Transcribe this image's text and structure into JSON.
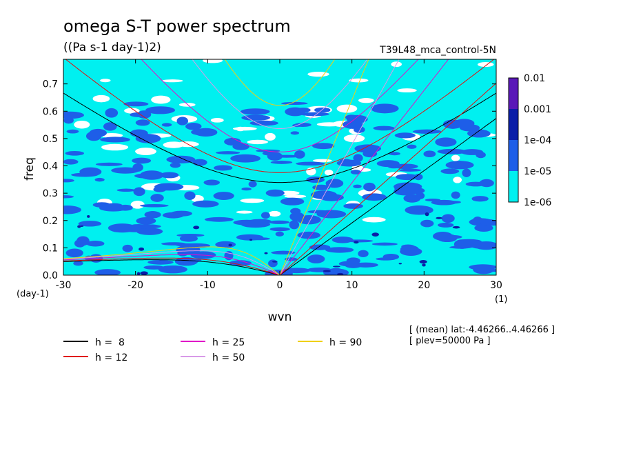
{
  "chart_data": {
    "type": "heatmap",
    "title": "omega S-T power spectrum",
    "subtitle": "((Pa s-1 day-1)2)",
    "run_label": "T39L48_mca_control-5N",
    "xlabel": "wvn",
    "ylabel": "freq",
    "x_unit": "(1)",
    "y_unit": "(day-1)",
    "xlim": [
      -30,
      30
    ],
    "ylim": [
      0,
      0.79
    ],
    "x_ticks": [
      "-30",
      "-20",
      "-10",
      "0",
      "10",
      "20",
      "30"
    ],
    "y_ticks": [
      "0.0",
      "0.1",
      "0.2",
      "0.3",
      "0.4",
      "0.5",
      "0.6",
      "0.7"
    ],
    "colorbar": {
      "labels": [
        "0.01",
        "0.001",
        "1e-04",
        "1e-05",
        "1e-06"
      ],
      "colors": [
        "#5a18b8",
        "#0a1ea8",
        "#1e5ee8",
        "#00f0f0"
      ]
    },
    "series": [
      {
        "name": "h =  8",
        "h": 8,
        "color": "#000000"
      },
      {
        "name": "h = 12",
        "h": 12,
        "color": "#e01010"
      },
      {
        "name": "h = 25",
        "h": 25,
        "color": "#e010c8"
      },
      {
        "name": "h = 50",
        "h": 50,
        "color": "#d89ae8"
      },
      {
        "name": "h = 90",
        "h": 90,
        "color": "#f0d010"
      }
    ],
    "annotations": [
      "[ (mean) lat:-4.46266..4.46266 ]",
      "[ plev=50000 Pa ]"
    ]
  }
}
